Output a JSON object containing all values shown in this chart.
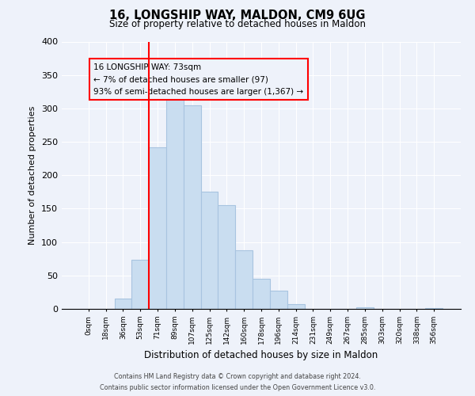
{
  "title": "16, LONGSHIP WAY, MALDON, CM9 6UG",
  "subtitle": "Size of property relative to detached houses in Maldon",
  "xlabel": "Distribution of detached houses by size in Maldon",
  "ylabel": "Number of detached properties",
  "bar_color": "#c9ddf0",
  "bar_edge_color": "#a8c4e0",
  "bin_labels": [
    "0sqm",
    "18sqm",
    "36sqm",
    "53sqm",
    "71sqm",
    "89sqm",
    "107sqm",
    "125sqm",
    "142sqm",
    "160sqm",
    "178sqm",
    "196sqm",
    "214sqm",
    "231sqm",
    "249sqm",
    "267sqm",
    "285sqm",
    "303sqm",
    "320sqm",
    "338sqm",
    "356sqm"
  ],
  "bar_values": [
    0,
    0,
    15,
    73,
    242,
    335,
    305,
    175,
    155,
    88,
    45,
    27,
    7,
    0,
    0,
    0,
    2,
    0,
    0,
    0,
    1
  ],
  "ylim": [
    0,
    400
  ],
  "yticks": [
    0,
    50,
    100,
    150,
    200,
    250,
    300,
    350,
    400
  ],
  "red_line_bin_index": 4,
  "annotation_box_text": "16 LONGSHIP WAY: 73sqm\n← 7% of detached houses are smaller (97)\n93% of semi-detached houses are larger (1,367) →",
  "footer_line1": "Contains HM Land Registry data © Crown copyright and database right 2024.",
  "footer_line2": "Contains public sector information licensed under the Open Government Licence v3.0.",
  "background_color": "#eef2fa",
  "grid_color": "#ffffff"
}
